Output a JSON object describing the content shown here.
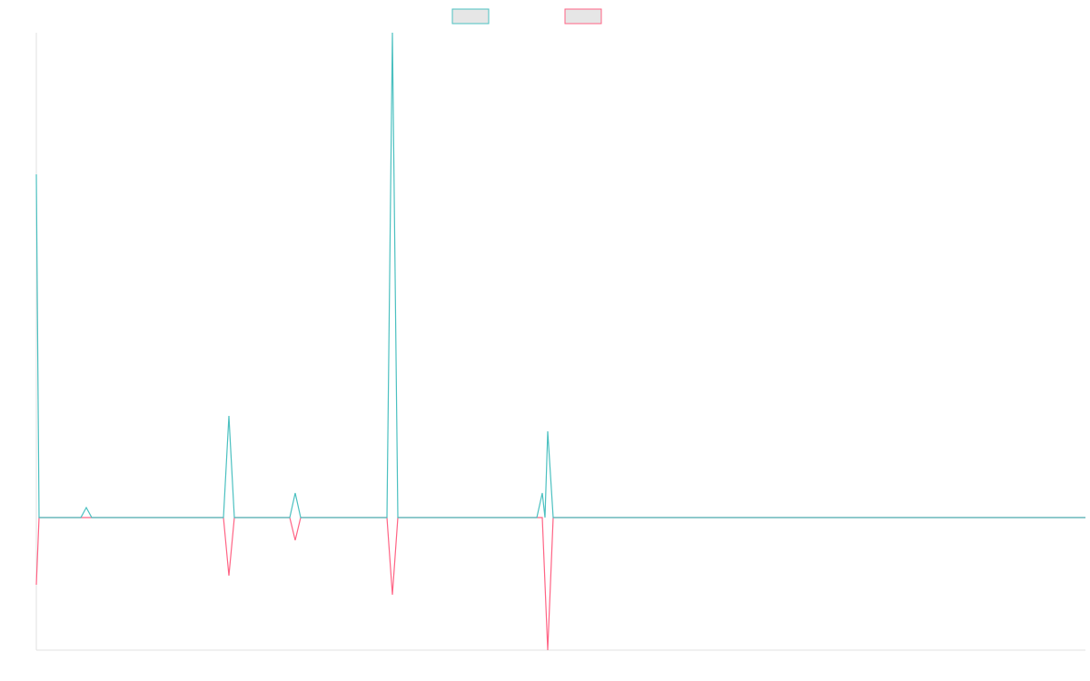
{
  "chart_data": {
    "type": "line",
    "xlim": [
      0,
      1155
    ],
    "ylim": [
      -146,
      534
    ],
    "series": [
      {
        "color": "#4bc0c0",
        "x": [
          0,
          3,
          49,
          55,
          61,
          206,
          212,
          218,
          279,
          285,
          291,
          386,
          392,
          398,
          551,
          557,
          560,
          563,
          569,
          1155
        ],
        "values": [
          378,
          0,
          0,
          11,
          0,
          0,
          112,
          0,
          0,
          27,
          0,
          0,
          534,
          0,
          0,
          27,
          0,
          95,
          0,
          0
        ]
      },
      {
        "color": "#ff6384",
        "x": [
          0,
          3,
          206,
          212,
          218,
          279,
          285,
          291,
          386,
          392,
          398,
          557,
          563,
          569,
          1155
        ],
        "values": [
          -74,
          0,
          0,
          -64,
          0,
          0,
          -25,
          0,
          0,
          -85,
          0,
          0,
          -146,
          0,
          0
        ]
      }
    ]
  }
}
